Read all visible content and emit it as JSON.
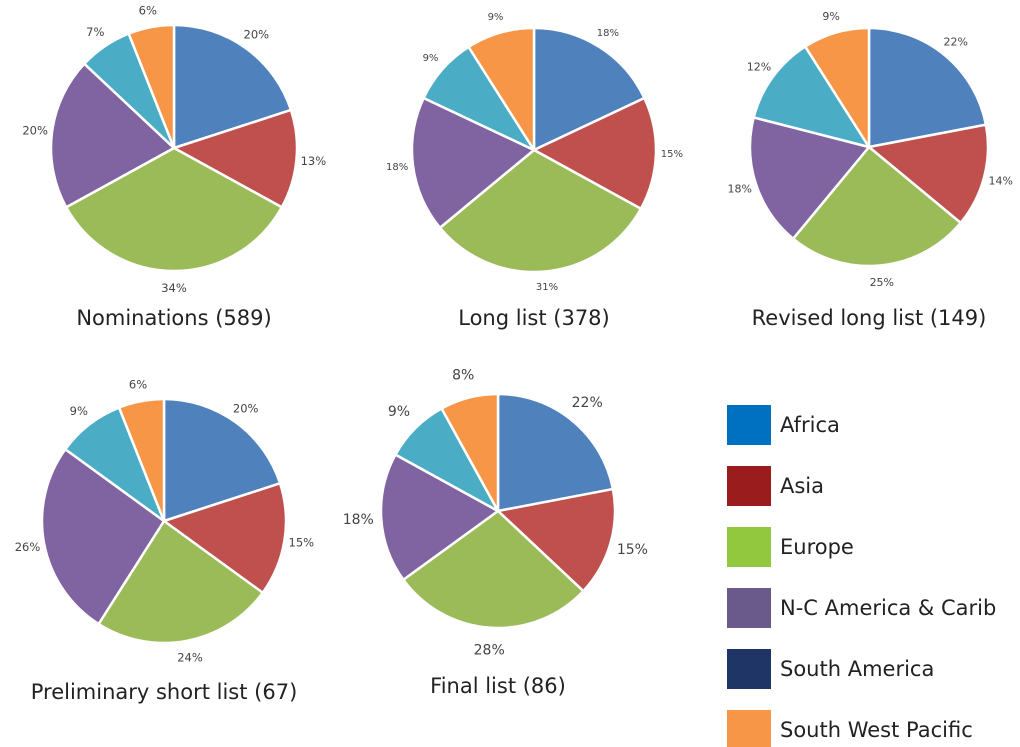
{
  "chart_data": [
    {
      "type": "pie",
      "title": "Nominations (589)",
      "slices": [
        {
          "label": "Africa",
          "value": 20
        },
        {
          "label": "Asia",
          "value": 13
        },
        {
          "label": "Europe",
          "value": 34
        },
        {
          "label": "N-C America & Carib",
          "value": 20
        },
        {
          "label": "South America",
          "value": 7
        },
        {
          "label": "South West Pacific",
          "value": 6
        }
      ]
    },
    {
      "type": "pie",
      "title": "Long list (378)",
      "slices": [
        {
          "label": "Africa",
          "value": 18
        },
        {
          "label": "Asia",
          "value": 15
        },
        {
          "label": "Europe",
          "value": 31
        },
        {
          "label": "N-C America & Carib",
          "value": 18
        },
        {
          "label": "South America",
          "value": 9
        },
        {
          "label": "South West Pacific",
          "value": 9
        }
      ]
    },
    {
      "type": "pie",
      "title": "Revised long list (149)",
      "slices": [
        {
          "label": "Africa",
          "value": 22
        },
        {
          "label": "Asia",
          "value": 14
        },
        {
          "label": "Europe",
          "value": 25
        },
        {
          "label": "N-C America & Carib",
          "value": 18
        },
        {
          "label": "South America",
          "value": 12
        },
        {
          "label": "South West Pacific",
          "value": 9
        }
      ]
    },
    {
      "type": "pie",
      "title": "Preliminary short list (67)",
      "slices": [
        {
          "label": "Africa",
          "value": 20
        },
        {
          "label": "Asia",
          "value": 15
        },
        {
          "label": "Europe",
          "value": 24
        },
        {
          "label": "N-C America & Carib",
          "value": 26
        },
        {
          "label": "South America",
          "value": 9
        },
        {
          "label": "South West Pacific",
          "value": 6
        }
      ]
    },
    {
      "type": "pie",
      "title": "Final list (86)",
      "slices": [
        {
          "label": "Africa",
          "value": 22
        },
        {
          "label": "Asia",
          "value": 15
        },
        {
          "label": "Europe",
          "value": 28
        },
        {
          "label": "N-C America & Carib",
          "value": 18
        },
        {
          "label": "South America",
          "value": 9
        },
        {
          "label": "South West Pacific",
          "value": 8
        }
      ]
    }
  ],
  "legend": [
    {
      "label": "Africa",
      "color": "#0070c0"
    },
    {
      "label": "Asia",
      "color": "#9b1c1c"
    },
    {
      "label": "Europe",
      "color": "#92c83e"
    },
    {
      "label": "N-C America & Carib",
      "color": "#6a5a8c"
    },
    {
      "label": "South America",
      "color": "#1f3566"
    },
    {
      "label": "South West Pacific",
      "color": "#f79646"
    }
  ],
  "slice_colors": [
    "#4f81bd",
    "#c0504d",
    "#9bbb59",
    "#8064a2",
    "#4bacc6",
    "#f79646"
  ],
  "slice_stroke": "#ffffff"
}
